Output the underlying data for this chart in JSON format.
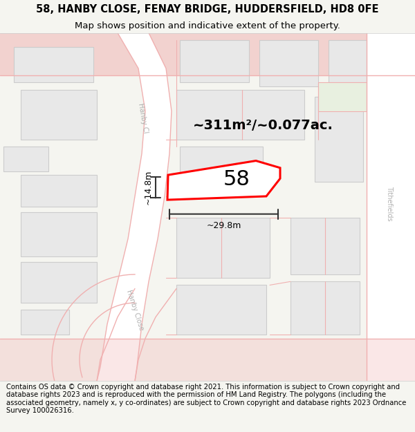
{
  "title_line1": "58, HANBY CLOSE, FENAY BRIDGE, HUDDERSFIELD, HD8 0FE",
  "title_line2": "Map shows position and indicative extent of the property.",
  "area_text": "~311m²/~0.077ac.",
  "number_label": "58",
  "width_label": "~29.8m",
  "height_label": "~14.8m",
  "footer_text": "Contains OS data © Crown copyright and database right 2021. This information is subject to Crown copyright and database rights 2023 and is reproduced with the permission of HM Land Registry. The polygons (including the associated geometry, namely x, y co-ordinates) are subject to Crown copyright and database rights 2023 Ordnance Survey 100026316.",
  "bg_color": "#f5f5f0",
  "map_bg": "#ffffff",
  "road_line_color": "#f0b0b0",
  "building_fill": "#e8e8e8",
  "building_outline": "#cccccc",
  "highlight_fill": "#ffffff",
  "highlight_outline": "#ff0000",
  "street_label_color": "#b0b0b0",
  "dim_color": "#333333",
  "green_fill": "#e8f0e0",
  "title_fontsize": 10.5,
  "subtitle_fontsize": 9.5,
  "footer_fontsize": 7.2
}
